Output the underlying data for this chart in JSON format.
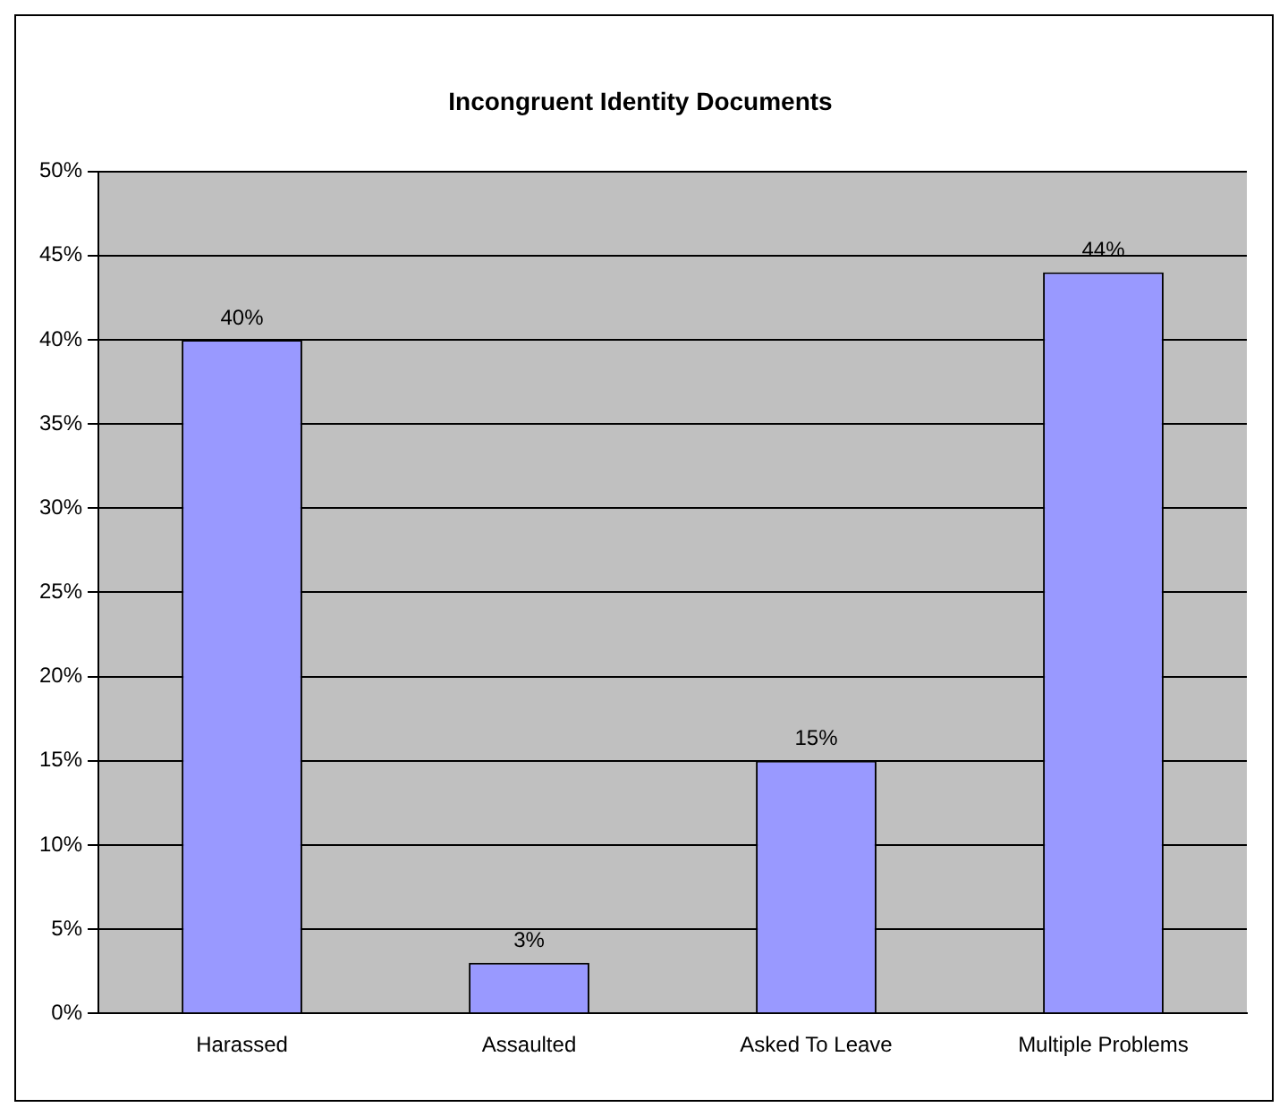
{
  "chart_data": {
    "type": "bar",
    "title": "Incongruent Identity Documents",
    "categories": [
      "Harassed",
      "Assaulted",
      "Asked To Leave",
      "Multiple Problems"
    ],
    "values": [
      40,
      3,
      15,
      44
    ],
    "value_labels": [
      "40%",
      "3%",
      "15%",
      "44%"
    ],
    "color": "#9999ff",
    "ylim": [
      0,
      50
    ],
    "yticks": [
      {
        "value": 0,
        "label": "0%"
      },
      {
        "value": 5,
        "label": "5%"
      },
      {
        "value": 10,
        "label": "10%"
      },
      {
        "value": 15,
        "label": "15%"
      },
      {
        "value": 20,
        "label": "20%"
      },
      {
        "value": 25,
        "label": "25%"
      },
      {
        "value": 30,
        "label": "30%"
      },
      {
        "value": 35,
        "label": "35%"
      },
      {
        "value": 40,
        "label": "40%"
      },
      {
        "value": 45,
        "label": "45%"
      },
      {
        "value": 50,
        "label": "50%"
      }
    ],
    "grid": "y",
    "legend": false
  }
}
